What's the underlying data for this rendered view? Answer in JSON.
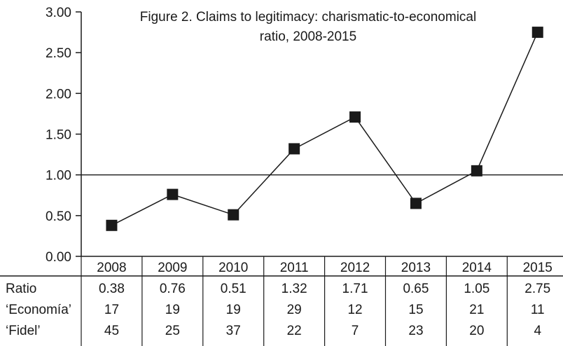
{
  "chart_data": {
    "type": "line",
    "title_line1": "Figure 2. Claims to legitimacy: charismatic-to-economical",
    "title_line2": "ratio, 2008-2015",
    "categories": [
      "2008",
      "2009",
      "2010",
      "2011",
      "2012",
      "2013",
      "2014",
      "2015"
    ],
    "series": [
      {
        "name": "Ratio",
        "values": [
          0.38,
          0.76,
          0.51,
          1.32,
          1.71,
          0.65,
          1.05,
          2.75
        ]
      }
    ],
    "ylim": [
      0,
      3
    ],
    "y_ticks": [
      "0.00",
      "0.50",
      "1.00",
      "1.50",
      "2.00",
      "2.50",
      "3.00"
    ],
    "reference_line": 1.0,
    "table": {
      "rows": [
        {
          "label": "Ratio",
          "cells": [
            "0.38",
            "0.76",
            "0.51",
            "1.32",
            "1.71",
            "0.65",
            "1.05",
            "2.75"
          ]
        },
        {
          "label": "‘Economía’",
          "cells": [
            "17",
            "19",
            "19",
            "29",
            "12",
            "15",
            "21",
            "11"
          ]
        },
        {
          "label": "‘Fidel’",
          "cells": [
            "45",
            "25",
            "37",
            "22",
            "7",
            "23",
            "20",
            "4"
          ]
        }
      ]
    },
    "marker": "square",
    "line_color": "#1a1a1a"
  }
}
